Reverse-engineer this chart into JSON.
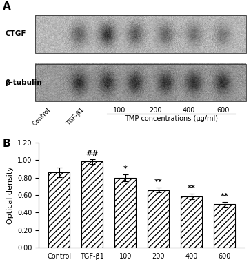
{
  "categories": [
    "Control",
    "TGF-β1",
    "100",
    "200",
    "400",
    "600"
  ],
  "values": [
    0.865,
    0.985,
    0.8,
    0.66,
    0.585,
    0.495
  ],
  "errors": [
    0.055,
    0.03,
    0.04,
    0.03,
    0.035,
    0.03
  ],
  "annotations": [
    "",
    "##",
    "*",
    "**",
    "**",
    "**"
  ],
  "xlabel": "TMP concentrations (μg/ml)",
  "ylabel": "Optical density",
  "ylim": [
    0.0,
    1.2
  ],
  "yticks": [
    0.0,
    0.2,
    0.4,
    0.6,
    0.8,
    1.0,
    1.2
  ],
  "bar_color": "white",
  "hatch": "////",
  "edge_color": "black",
  "panel_a_label": "A",
  "panel_b_label": "B",
  "ctgf_band_darkness": [
    0.38,
    0.22,
    0.35,
    0.4,
    0.45,
    0.48
  ],
  "beta_band_darkness": [
    0.2,
    0.2,
    0.2,
    0.2,
    0.2,
    0.2
  ],
  "blot_bg_light": 0.72,
  "blot_bg_dark": 0.55,
  "x_labels_top": [
    "Control",
    "TGF-β1",
    "100",
    "200",
    "400",
    "600"
  ]
}
